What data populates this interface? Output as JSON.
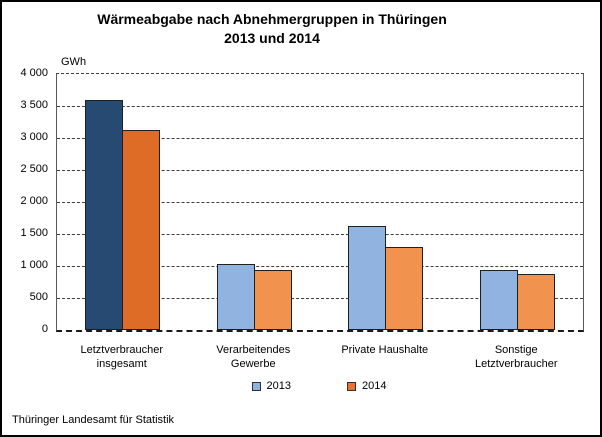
{
  "header": {
    "title_line1": "Wärmeabgabe nach Abnehmergruppen in Thüringen",
    "title_line2": "2013 und 2014"
  },
  "axis": {
    "unit": "GWh"
  },
  "footer": {
    "source": "Thüringer Landesamt für Statistik"
  },
  "colors": {
    "bar_border": "#1f1f1f",
    "gridline": "#3f3f3f",
    "series_2013_light_blue": "#90B3DF",
    "series_2013_dark_blue": "#274A72",
    "series_2014_light_orange": "#F1934F",
    "series_2014_dark_orange": "#DE6B26"
  },
  "chart_data": {
    "type": "bar",
    "title": "Wärmeabgabe nach Abnehmergruppen in Thüringen 2013 und 2014",
    "ylabel": "GWh",
    "xlabel": "",
    "categories": [
      "Letztverbraucher\ninsgesamt",
      "Verarbeitendes\nGewerbe",
      "Private Haushalte",
      "Sonstige\nLetztverbraucher"
    ],
    "series": [
      {
        "name": "2013",
        "values": [
          3590,
          1035,
          1620,
          945
        ],
        "color": "#90B3DF",
        "highlight_color": "#274A72",
        "legend_color": "#8FB2DE"
      },
      {
        "name": "2014",
        "values": [
          3130,
          945,
          1290,
          875
        ],
        "color": "#F1934F",
        "highlight_color": "#DE6B26",
        "legend_color": "#E8732A"
      }
    ],
    "highlight_category_index": 0,
    "ylim": [
      0,
      4000
    ],
    "ytick_step": 500,
    "yticks_top_to_bottom": [
      "4 000",
      "3 500",
      "3 000",
      "2 500",
      "2 000",
      "1 500",
      "1 000",
      "500",
      "0"
    ],
    "grid": "horizontal-dashed",
    "legend_position": "bottom-center"
  }
}
